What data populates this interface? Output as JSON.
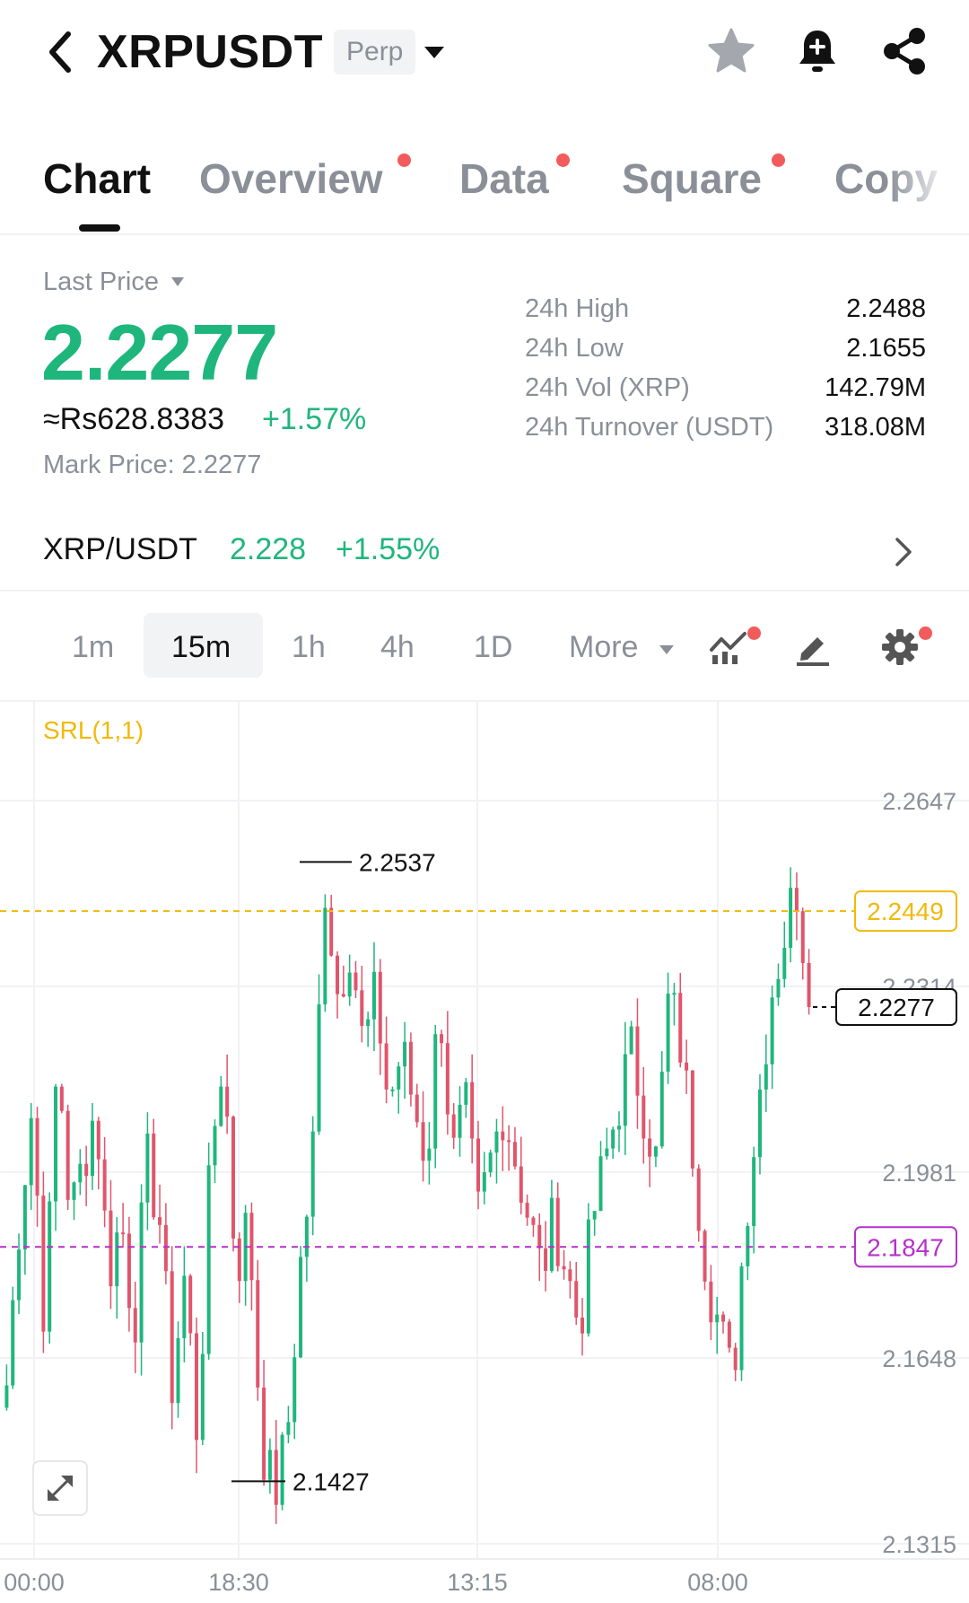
{
  "header": {
    "back_icon": "chevron-left-icon",
    "symbol": "XRPUSDT",
    "contract_type": "Perp",
    "dropdown_icon": "caret-down-icon",
    "favorite_icon": "star-icon",
    "alert_icon": "bell-plus-icon",
    "share_icon": "share-icon"
  },
  "tabs": [
    {
      "label": "Chart",
      "active": true,
      "dot": false
    },
    {
      "label": "Overview",
      "active": false,
      "dot": true
    },
    {
      "label": "Data",
      "active": false,
      "dot": true
    },
    {
      "label": "Square",
      "active": false,
      "dot": true
    },
    {
      "label": "Copy",
      "active": false,
      "dot": false
    }
  ],
  "price": {
    "last_price_label": "Last Price",
    "last_price": "2.2277",
    "local_price": "≈Rs628.8383",
    "change_pct": "+1.57%",
    "mark_price": "Mark Price:  2.2277"
  },
  "stats": [
    {
      "label": "24h High",
      "value": "2.2488"
    },
    {
      "label": "24h Low",
      "value": "2.1655"
    },
    {
      "label": "24h Vol (XRP)",
      "value": "142.79M"
    },
    {
      "label": "24h Turnover (USDT)",
      "value": "318.08M"
    }
  ],
  "spot": {
    "pair": "XRP/USDT",
    "price": "2.228",
    "change": "+1.55%"
  },
  "intervals": {
    "items": [
      "1m",
      "15m",
      "1h",
      "4h",
      "1D"
    ],
    "selected": "15m",
    "more_label": "More"
  },
  "toolbar_icons": [
    "indicator-icon",
    "draw-tool-icon",
    "settings-gear-icon"
  ],
  "colors": {
    "up": "#1fb67d",
    "down": "#e0556b",
    "accent_yellow": "#f0b90b",
    "accent_purple": "#b531c9",
    "badge_dot": "#f25b5b"
  },
  "chart_data": {
    "type": "candlestick",
    "indicator": "SRL(1,1)",
    "y_ticks": [
      "2.2647",
      "2.2314",
      "2.1981",
      "2.1648",
      "2.1315"
    ],
    "ylim": [
      2.1315,
      2.2647
    ],
    "x_ticks": [
      "00:00",
      "18:30",
      "13:15",
      "08:00"
    ],
    "high_label": "2.2537",
    "low_label": "2.1427",
    "srl_upper": "2.2449",
    "srl_lower": "2.1847",
    "last_price_tag": "2.2277",
    "close_path": [
      2.16,
      2.19,
      2.21,
      2.17,
      2.22,
      2.19,
      2.2,
      2.21,
      2.18,
      2.19,
      2.17,
      2.2,
      2.19,
      2.16,
      2.18,
      2.15,
      2.2,
      2.22,
      2.18,
      2.19,
      2.15,
      2.14,
      2.15,
      2.18,
      2.2,
      2.25,
      2.23,
      2.24,
      2.22,
      2.23,
      2.21,
      2.22,
      2.21,
      2.2,
      2.23,
      2.2,
      2.21,
      2.19,
      2.2,
      2.21,
      2.2,
      2.19,
      2.18,
      2.19,
      2.18,
      2.17,
      2.19,
      2.2,
      2.21,
      2.22,
      2.21,
      2.2,
      2.23,
      2.22,
      2.2,
      2.18,
      2.17,
      2.16,
      2.19,
      2.21,
      2.23,
      2.24,
      2.25,
      2.23
    ],
    "last_value": 2.2277
  },
  "chart_ui": {
    "expand_icon": "expand-arrows-icon"
  }
}
